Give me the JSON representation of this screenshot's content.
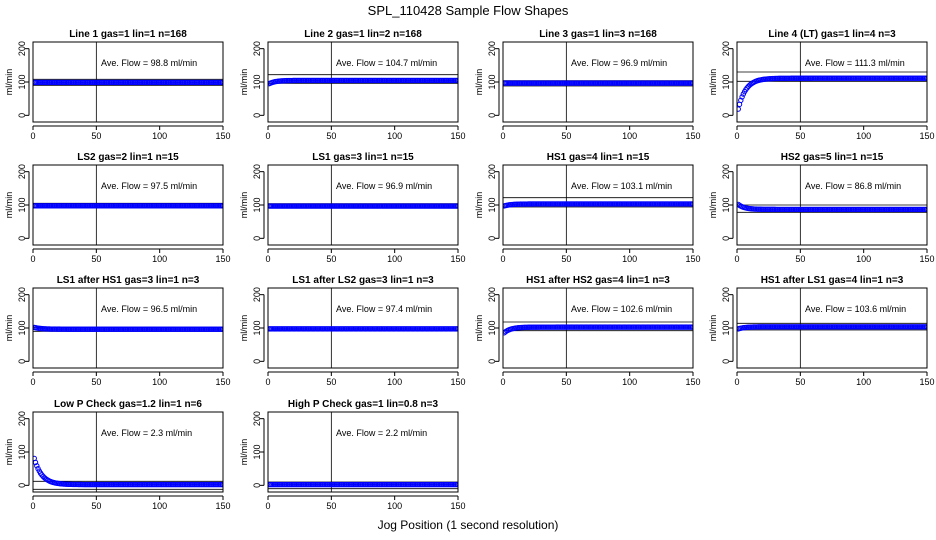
{
  "figure": {
    "title": "SPL_110428  Sample Flow Shapes",
    "xlabel": "Jog Position (1 second resolution)"
  },
  "chart_data": [
    {
      "type": "scatter",
      "title": "Line 1 gas=1 lin=1 n=168",
      "ylabel": "ml/min",
      "xlim": [
        0,
        150
      ],
      "ylim": [
        -20,
        220
      ],
      "xticks": [
        0,
        50,
        100,
        150
      ],
      "yticks": [
        0,
        100,
        200
      ],
      "vline": 50,
      "annotation": "Ave. Flow = 98.8  ml/min",
      "average": 98.8,
      "band": [
        90,
        108
      ],
      "shape": "flat",
      "start_value": 103,
      "series_color": "#0000ff"
    },
    {
      "type": "scatter",
      "title": "Line 2 gas=1 lin=2 n=168",
      "ylabel": "ml/min",
      "xlim": [
        0,
        150
      ],
      "ylim": [
        -20,
        220
      ],
      "xticks": [
        0,
        50,
        100,
        150
      ],
      "yticks": [
        0,
        100,
        200
      ],
      "vline": 50,
      "annotation": "Ave. Flow = 104.7  ml/min",
      "average": 104.7,
      "band": [
        96,
        122
      ],
      "shape": "rise",
      "start_value": 93,
      "series_color": "#0000ff"
    },
    {
      "type": "scatter",
      "title": "Line 3 gas=1 lin=3 n=168",
      "ylabel": "ml/min",
      "xlim": [
        0,
        150
      ],
      "ylim": [
        -20,
        220
      ],
      "xticks": [
        0,
        50,
        100,
        150
      ],
      "yticks": [
        0,
        100,
        200
      ],
      "vline": 50,
      "annotation": "Ave. Flow = 96.9  ml/min",
      "average": 96.9,
      "band": [
        88,
        104
      ],
      "shape": "flat",
      "start_value": 97,
      "series_color": "#0000ff"
    },
    {
      "type": "scatter",
      "title": "Line 4 (LT) gas=1 lin=4 n=3",
      "ylabel": "ml/min",
      "xlim": [
        0,
        150
      ],
      "ylim": [
        -20,
        220
      ],
      "xticks": [
        0,
        50,
        100,
        150
      ],
      "yticks": [
        0,
        100,
        200
      ],
      "vline": 50,
      "annotation": "Ave. Flow = 111.3  ml/min",
      "average": 111.3,
      "band": [
        102,
        130
      ],
      "shape": "rise",
      "start_value": 2,
      "series_color": "#0000ff"
    },
    {
      "type": "scatter",
      "title": "LS2 gas=2 lin=1 n=15",
      "ylabel": "ml/min",
      "xlim": [
        0,
        150
      ],
      "ylim": [
        -20,
        220
      ],
      "xticks": [
        0,
        50,
        100,
        150
      ],
      "yticks": [
        0,
        100,
        200
      ],
      "vline": 50,
      "annotation": "Ave. Flow = 97.5  ml/min",
      "average": 97.5,
      "band": [
        93,
        105
      ],
      "shape": "flat",
      "start_value": 98,
      "series_color": "#0000ff"
    },
    {
      "type": "scatter",
      "title": "LS1 gas=3 lin=1 n=15",
      "ylabel": "ml/min",
      "xlim": [
        0,
        150
      ],
      "ylim": [
        -20,
        220
      ],
      "xticks": [
        0,
        50,
        100,
        150
      ],
      "yticks": [
        0,
        100,
        200
      ],
      "vline": 50,
      "annotation": "Ave. Flow = 96.9  ml/min",
      "average": 96.9,
      "band": [
        92,
        104
      ],
      "shape": "flat",
      "start_value": 97,
      "series_color": "#0000ff"
    },
    {
      "type": "scatter",
      "title": "HS1 gas=4 lin=1 n=15",
      "ylabel": "ml/min",
      "xlim": [
        0,
        150
      ],
      "ylim": [
        -20,
        220
      ],
      "xticks": [
        0,
        50,
        100,
        150
      ],
      "yticks": [
        0,
        100,
        200
      ],
      "vline": 50,
      "annotation": "Ave. Flow = 103.1  ml/min",
      "average": 103.1,
      "band": [
        94,
        122
      ],
      "shape": "rise",
      "start_value": 96,
      "series_color": "#0000ff"
    },
    {
      "type": "scatter",
      "title": "HS2 gas=5 lin=1 n=15",
      "ylabel": "ml/min",
      "xlim": [
        0,
        150
      ],
      "ylim": [
        -20,
        220
      ],
      "xticks": [
        0,
        50,
        100,
        150
      ],
      "yticks": [
        0,
        100,
        200
      ],
      "vline": 50,
      "annotation": "Ave. Flow = 86.8  ml/min",
      "average": 86.8,
      "band": [
        78,
        100
      ],
      "shape": "fall",
      "start_value": 105,
      "series_color": "#0000ff"
    },
    {
      "type": "scatter",
      "title": "LS1 after HS1 gas=3 lin=1 n=3",
      "ylabel": "ml/min",
      "xlim": [
        0,
        150
      ],
      "ylim": [
        -20,
        220
      ],
      "xticks": [
        0,
        50,
        100,
        150
      ],
      "yticks": [
        0,
        100,
        200
      ],
      "vline": 50,
      "annotation": "Ave. Flow = 96.5  ml/min",
      "average": 96.5,
      "band": [
        90,
        102
      ],
      "shape": "fall",
      "start_value": 103,
      "series_color": "#0000ff"
    },
    {
      "type": "scatter",
      "title": "LS1 after LS2 gas=3 lin=1 n=3",
      "ylabel": "ml/min",
      "xlim": [
        0,
        150
      ],
      "ylim": [
        -20,
        220
      ],
      "xticks": [
        0,
        50,
        100,
        150
      ],
      "yticks": [
        0,
        100,
        200
      ],
      "vline": 50,
      "annotation": "Ave. Flow = 97.4  ml/min",
      "average": 97.4,
      "band": [
        93,
        103
      ],
      "shape": "flat",
      "start_value": 97,
      "series_color": "#0000ff"
    },
    {
      "type": "scatter",
      "title": "HS1 after HS2 gas=4 lin=1 n=3",
      "ylabel": "ml/min",
      "xlim": [
        0,
        150
      ],
      "ylim": [
        -20,
        220
      ],
      "xticks": [
        0,
        50,
        100,
        150
      ],
      "yticks": [
        0,
        100,
        200
      ],
      "vline": 50,
      "annotation": "Ave. Flow = 102.6  ml/min",
      "average": 102.6,
      "band": [
        92,
        118
      ],
      "shape": "rise",
      "start_value": 82,
      "series_color": "#0000ff"
    },
    {
      "type": "scatter",
      "title": "HS1 after LS1 gas=4 lin=1 n=3",
      "ylabel": "ml/min",
      "xlim": [
        0,
        150
      ],
      "ylim": [
        -20,
        220
      ],
      "xticks": [
        0,
        50,
        100,
        150
      ],
      "yticks": [
        0,
        100,
        200
      ],
      "vline": 50,
      "annotation": "Ave. Flow = 103.6  ml/min",
      "average": 103.6,
      "band": [
        94,
        114
      ],
      "shape": "rise",
      "start_value": 96,
      "series_color": "#0000ff"
    },
    {
      "type": "scatter",
      "title": "Low P Check gas=1.2 lin=1 n=6",
      "ylabel": "ml/min",
      "xlim": [
        0,
        150
      ],
      "ylim": [
        -20,
        220
      ],
      "xticks": [
        0,
        50,
        100,
        150
      ],
      "yticks": [
        0,
        100,
        200
      ],
      "vline": 50,
      "annotation": "Ave. Flow = 2.3  ml/min",
      "average": 2.3,
      "band": [
        -12,
        12
      ],
      "shape": "fall",
      "start_value": 95,
      "series_color": "#0000ff"
    },
    {
      "type": "scatter",
      "title": "High P Check gas=1 lin=0.8 n=3",
      "ylabel": "ml/min",
      "xlim": [
        0,
        150
      ],
      "ylim": [
        -20,
        220
      ],
      "xticks": [
        0,
        50,
        100,
        150
      ],
      "yticks": [
        0,
        100,
        200
      ],
      "vline": 50,
      "annotation": "Ave. Flow = 2.2  ml/min",
      "average": 2.2,
      "band": [
        -10,
        10
      ],
      "shape": "flat",
      "start_value": 2,
      "series_color": "#0000ff"
    }
  ]
}
